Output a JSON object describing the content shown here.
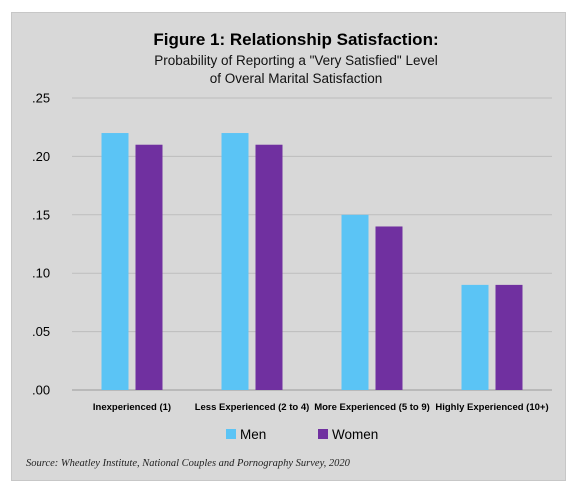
{
  "chart_data": {
    "type": "bar",
    "title": "Figure 1: Relationship Satisfaction:",
    "subtitle_lines": [
      "Probability of Reporting a \"Very Satisfied\" Level",
      "of Overal Marital Satisfaction"
    ],
    "categories": [
      "Inexperienced (1)",
      "Less Experienced (2 to 4)",
      "More Experienced (5 to 9)",
      "Highly Experienced (10+)"
    ],
    "series": [
      {
        "name": "Men",
        "color": "#5bc4f5",
        "values": [
          0.22,
          0.22,
          0.15,
          0.09
        ]
      },
      {
        "name": "Women",
        "color": "#7030a0",
        "values": [
          0.21,
          0.21,
          0.14,
          0.09
        ]
      }
    ],
    "yticks": [
      ".00",
      ".05",
      ".10",
      ".15",
      ".20",
      ".25"
    ],
    "ylim": [
      0,
      0.25
    ],
    "grid": true,
    "legend_position": "bottom",
    "xlabel": "",
    "ylabel": ""
  },
  "source": "Source: Wheatley Institute, National Couples and Pornography Survey, 2020"
}
